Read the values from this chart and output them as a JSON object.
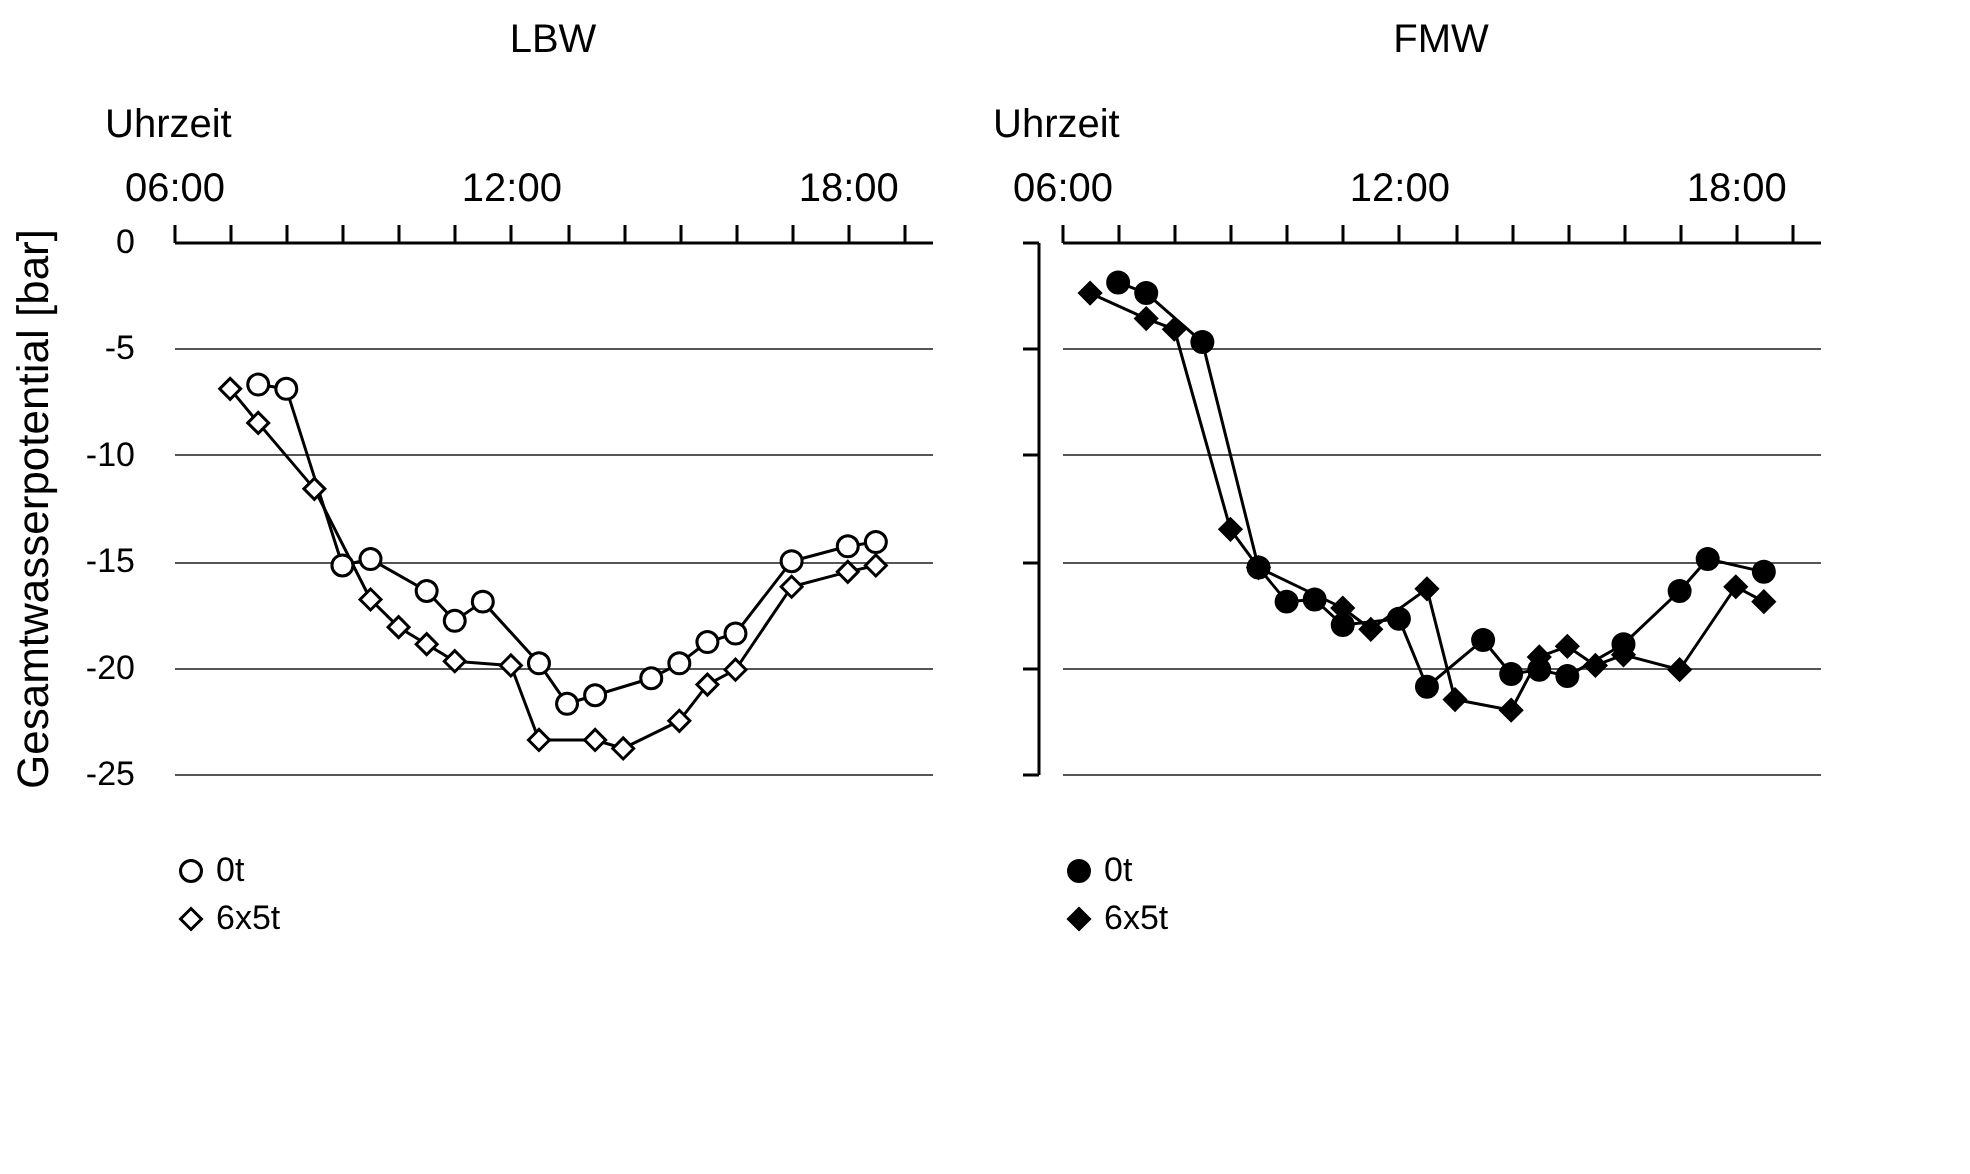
{
  "chart_data": [
    {
      "type": "line",
      "title": "LBW",
      "xlabel": "Uhrzeit",
      "ylabel": "Gesamtwasserpotential [bar]",
      "xlim": [
        6,
        19.5
      ],
      "xticks": [
        {
          "value": 6,
          "label": "06:00"
        },
        {
          "value": 7,
          "label": null
        },
        {
          "value": 8,
          "label": null
        },
        {
          "value": 9,
          "label": null
        },
        {
          "value": 10,
          "label": null
        },
        {
          "value": 11,
          "label": null
        },
        {
          "value": 12,
          "label": "12:00"
        },
        {
          "value": 13,
          "label": null
        },
        {
          "value": 14,
          "label": null
        },
        {
          "value": 15,
          "label": null
        },
        {
          "value": 16,
          "label": null
        },
        {
          "value": 17,
          "label": null
        },
        {
          "value": 18,
          "label": "18:00"
        },
        {
          "value": 19,
          "label": null
        }
      ],
      "ylim": [
        -25,
        0
      ],
      "yticks": [
        0,
        -5,
        -10,
        -15,
        -20,
        -25
      ],
      "grid": "y",
      "legend": "bottom",
      "series": [
        {
          "name": "0t",
          "color": "#ffffff",
          "marker": "circle",
          "x": [
            7.5,
            8,
            9,
            9.5,
            10.5,
            11,
            11.5,
            12.5,
            13,
            13.5,
            14.5,
            15,
            15.5,
            16,
            17,
            18,
            18.5
          ],
          "values": [
            -6.7,
            -6.9,
            -15.2,
            -14.9,
            -16.4,
            -17.8,
            -16.9,
            -19.8,
            -21.7,
            -21.3,
            -20.5,
            -19.8,
            -18.8,
            -18.4,
            -15.0,
            -14.3,
            -14.1
          ]
        },
        {
          "name": "6x5t",
          "color": "#ffffff",
          "marker": "diamond",
          "x": [
            7,
            7.5,
            8.5,
            9.5,
            10,
            10.5,
            11,
            12,
            12.5,
            13.5,
            14,
            15,
            15.5,
            16,
            17,
            18,
            18.5
          ],
          "values": [
            -6.9,
            -8.5,
            -11.6,
            -16.8,
            -18.1,
            -18.9,
            -19.7,
            -19.9,
            -23.4,
            -23.4,
            -23.8,
            -22.5,
            -20.8,
            -20.1,
            -16.2,
            -15.5,
            -15.2
          ]
        }
      ]
    },
    {
      "type": "line",
      "title": "FMW",
      "xlabel": "Uhrzeit",
      "xlim": [
        6,
        19.5
      ],
      "xticks": [
        {
          "value": 6,
          "label": "06:00"
        },
        {
          "value": 7,
          "label": null
        },
        {
          "value": 8,
          "label": null
        },
        {
          "value": 9,
          "label": null
        },
        {
          "value": 10,
          "label": null
        },
        {
          "value": 11,
          "label": null
        },
        {
          "value": 12,
          "label": "12:00"
        },
        {
          "value": 13,
          "label": null
        },
        {
          "value": 14,
          "label": null
        },
        {
          "value": 15,
          "label": null
        },
        {
          "value": 16,
          "label": null
        },
        {
          "value": 17,
          "label": null
        },
        {
          "value": 18,
          "label": "18:00"
        },
        {
          "value": 19,
          "label": null
        }
      ],
      "ylim": [
        -25,
        0
      ],
      "yticks": [
        0,
        -5,
        -10,
        -15,
        -20,
        -25
      ],
      "grid": "y",
      "legend": "bottom",
      "tick_labels": "x",
      "series": [
        {
          "name": "0t",
          "color": "#000000",
          "marker": "circle",
          "x": [
            7,
            7.5,
            8.5,
            9.5,
            10,
            10.5,
            11,
            12,
            12.5,
            13.5,
            14,
            14.5,
            15,
            16,
            17,
            17.5,
            18.5
          ],
          "values": [
            -1.9,
            -2.4,
            -4.7,
            -15.3,
            -16.9,
            -16.8,
            -18.0,
            -17.7,
            -20.9,
            -18.7,
            -20.3,
            -20.1,
            -20.4,
            -18.9,
            -16.4,
            -14.9,
            -15.5
          ]
        },
        {
          "name": "6x5t",
          "color": "#000000",
          "marker": "diamond",
          "x": [
            6.5,
            7.5,
            8,
            9,
            9.5,
            11,
            11.5,
            12.5,
            13,
            14,
            14.5,
            15,
            15.5,
            16,
            17,
            18,
            18.5
          ],
          "values": [
            -2.4,
            -3.6,
            -4.1,
            -13.5,
            -15.3,
            -17.2,
            -18.2,
            -16.3,
            -21.5,
            -22.0,
            -19.5,
            -19.0,
            -19.9,
            -19.4,
            -20.1,
            -16.2,
            -16.9
          ]
        }
      ]
    }
  ]
}
